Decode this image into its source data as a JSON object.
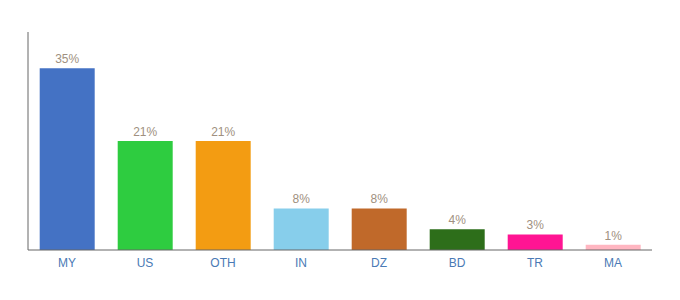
{
  "chart_data": {
    "type": "bar",
    "categories": [
      "MY",
      "US",
      "OTH",
      "IN",
      "DZ",
      "BD",
      "TR",
      "MA"
    ],
    "values": [
      35,
      21,
      21,
      8,
      8,
      4,
      3,
      1
    ],
    "value_labels": [
      "35%",
      "21%",
      "21%",
      "8%",
      "8%",
      "4%",
      "3%",
      "1%"
    ],
    "data_labels": true,
    "colors": [
      "#4472c4",
      "#2ecc40",
      "#f39c12",
      "#87ceeb",
      "#c0692a",
      "#2d6e1a",
      "#ff1493",
      "#ffb6c1"
    ],
    "ylim": [
      0,
      42
    ],
    "tick_labels": "x"
  }
}
